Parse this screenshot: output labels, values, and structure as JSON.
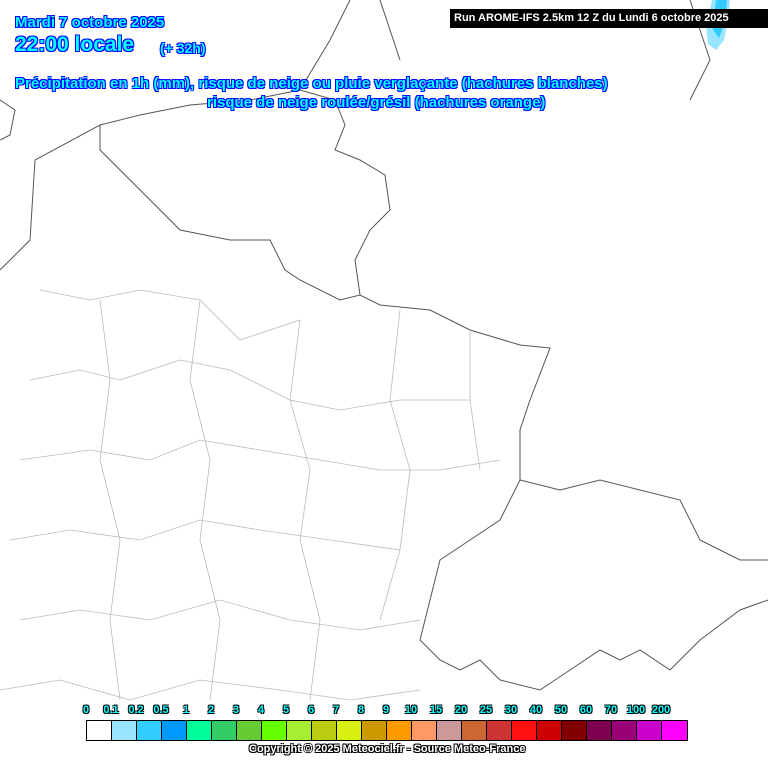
{
  "header": {
    "date": "Mardi 7 octobre 2025",
    "time": "22:00 locale",
    "lead": "(+ 32h)",
    "description_line1": "Précipitation en 1h (mm), risque de neige ou pluie verglaçante (hachures blanches)",
    "description_line2": "risque de neige roulée/grésil (hachures orange)",
    "run": "Run AROME-IFS 2.5km 12 Z du Lundi 6 octobre 2025"
  },
  "legend": {
    "labels": [
      "0",
      "0.1",
      "0.2",
      "0.5",
      "1",
      "2",
      "3",
      "4",
      "5",
      "6",
      "7",
      "8",
      "9",
      "10",
      "15",
      "20",
      "25",
      "30",
      "40",
      "50",
      "60",
      "70",
      "100",
      "200"
    ],
    "colors": [
      "#ffffff",
      "#99e5ff",
      "#33ccff",
      "#0099ff",
      "#00ff99",
      "#33cc66",
      "#66cc33",
      "#66ff00",
      "#a6ee33",
      "#bbcc11",
      "#d9ee11",
      "#cc9900",
      "#ff9900",
      "#ff9966",
      "#cc9999",
      "#cc6633",
      "#cc3333",
      "#ff1111",
      "#cc0000",
      "#800000",
      "#7f0050",
      "#990077",
      "#cc00cc",
      "#ff00ff"
    ]
  },
  "copyright": "Copyright © 2025 Meteociel.fr - Source Meteo-France",
  "colors": {
    "title_text": "#00ffff",
    "title_outline": "#0000ff",
    "precip_light": "#99e5ff",
    "precip_medium": "#33ccff"
  }
}
